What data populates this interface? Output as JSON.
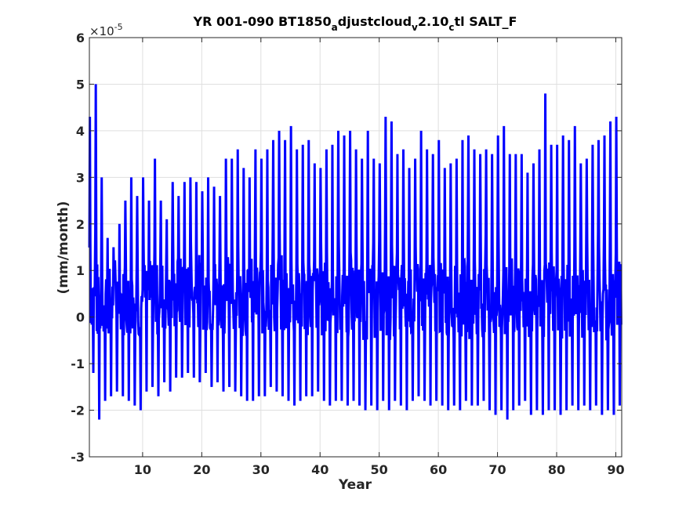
{
  "chart_data": {
    "type": "line",
    "title": {
      "p1": "YR 001-090 BT1850",
      "s1": "a",
      "p2": "djustcloud",
      "s2": "v",
      "p3": "2.10",
      "s3": "c",
      "p4": "tl SALT_F"
    },
    "xlabel": "Year",
    "ylabel": "(mm/month)",
    "y_multiplier": {
      "base": "×10",
      "exponent": "-5"
    },
    "xlim": [
      1,
      91
    ],
    "ylim": [
      -3,
      6
    ],
    "x_ticks": [
      10,
      20,
      30,
      40,
      50,
      60,
      70,
      80,
      90
    ],
    "y_ticks": [
      -3,
      -2,
      -1,
      0,
      1,
      2,
      3,
      4,
      5,
      6
    ],
    "grid": true,
    "series_color": "#0000ff",
    "samples_per_year": 12,
    "series": [
      {
        "description": "monthly values (x 1e-5); per-year seasonal peak and trough read from the plot",
        "annual_max": [
          4.3,
          5.0,
          3.0,
          1.7,
          1.5,
          2.0,
          2.5,
          3.0,
          2.6,
          3.0,
          2.5,
          3.4,
          2.5,
          2.1,
          2.9,
          2.6,
          2.9,
          3.0,
          2.9,
          2.7,
          3.0,
          2.8,
          2.6,
          3.4,
          3.4,
          3.6,
          3.2,
          3.0,
          3.6,
          3.4,
          3.6,
          3.8,
          4.0,
          3.8,
          4.1,
          3.6,
          3.7,
          3.8,
          3.3,
          3.2,
          3.6,
          3.7,
          4.0,
          3.9,
          4.0,
          3.6,
          3.4,
          4.0,
          3.4,
          3.3,
          4.3,
          4.2,
          3.5,
          3.6,
          3.2,
          3.4,
          4.0,
          3.6,
          3.5,
          3.8,
          3.2,
          3.3,
          3.4,
          3.8,
          3.9,
          3.6,
          3.5,
          3.6,
          3.5,
          3.9,
          4.1,
          3.5,
          3.5,
          3.5,
          3.1,
          3.3,
          3.6,
          4.8,
          3.7,
          3.7,
          3.9,
          3.8,
          4.1,
          3.3,
          3.4,
          3.7,
          3.8,
          3.9,
          4.2,
          4.3
        ],
        "annual_min": [
          -1.2,
          -2.2,
          -1.8,
          -1.7,
          -1.6,
          -1.7,
          -1.8,
          -1.9,
          -2.0,
          -1.6,
          -1.5,
          -1.7,
          -1.4,
          -1.6,
          -1.3,
          -1.3,
          -1.2,
          -1.3,
          -1.4,
          -1.2,
          -1.5,
          -1.4,
          -1.6,
          -1.5,
          -1.6,
          -1.7,
          -1.8,
          -1.8,
          -1.7,
          -1.7,
          -1.5,
          -1.6,
          -1.7,
          -1.8,
          -1.9,
          -1.8,
          -1.7,
          -1.7,
          -1.6,
          -1.8,
          -1.9,
          -1.8,
          -1.8,
          -1.9,
          -1.8,
          -1.9,
          -2.0,
          -1.9,
          -2.0,
          -1.8,
          -2.0,
          -1.8,
          -1.9,
          -2.0,
          -1.8,
          -1.7,
          -1.8,
          -1.9,
          -1.8,
          -1.9,
          -2.0,
          -1.9,
          -2.0,
          -1.8,
          -1.9,
          -1.9,
          -1.8,
          -2.0,
          -2.1,
          -2.0,
          -2.2,
          -2.0,
          -1.9,
          -1.8,
          -2.1,
          -2.0,
          -2.1,
          -2.0,
          -2.0,
          -2.1,
          -2.0,
          -1.9,
          -2.0,
          -1.9,
          -2.0,
          -1.9,
          -2.1,
          -2.0,
          -2.1,
          -1.9
        ]
      }
    ]
  }
}
